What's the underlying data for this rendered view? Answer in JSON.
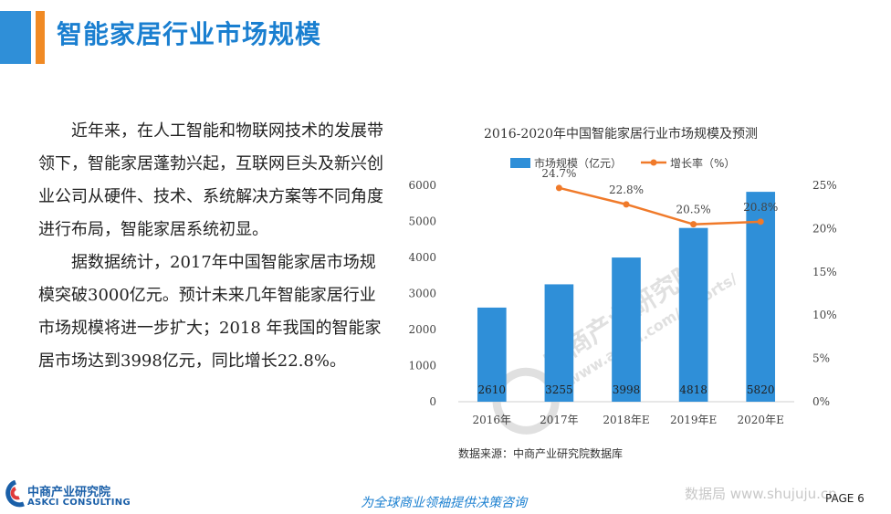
{
  "header": {
    "title": "智能家居行业市场规模"
  },
  "body": {
    "paragraphs": [
      "近年来，在人工智能和物联网技术的发展带领下，智能家居蓬勃兴起，互联网巨头及新兴创业公司从硬件、技术、系统解决方案等不同角度进行布局，智能家居系统初显。",
      "据数据统计，2017年中国智能家居市场规模突破3000亿元。预计未来几年智能家居行业市场规模将进一步扩大；2018 年我国的智能家居市场达到3998亿元，同比增长22.8%。"
    ]
  },
  "chart_data": {
    "type": "bar",
    "title": "2016-2020年中国智能家居行业市场规模及预测",
    "categories": [
      "2016年",
      "2017年",
      "2018年E",
      "2019年E",
      "2020年E"
    ],
    "series": [
      {
        "name": "市场规模（亿元）",
        "type": "bar",
        "axis": "left",
        "values": [
          2610,
          3255,
          3998,
          4818,
          5820
        ],
        "labels": [
          "2610",
          "3255",
          "3998",
          "4818",
          "5820"
        ],
        "color": "#2f8fd8"
      },
      {
        "name": "增长率（%）",
        "type": "line",
        "axis": "right",
        "values": [
          null,
          24.7,
          22.8,
          20.5,
          20.8
        ],
        "labels": [
          "",
          "24.7%",
          "22.8%",
          "20.5%",
          "20.8%"
        ],
        "color": "#f07a2a"
      }
    ],
    "y_left": {
      "range": [
        0,
        6000
      ],
      "ticks": [
        "0",
        "1000",
        "2000",
        "3000",
        "4000",
        "5000",
        "6000"
      ]
    },
    "y_right": {
      "range": [
        0,
        25
      ],
      "ticks": [
        "0%",
        "5%",
        "10%",
        "15%",
        "20%",
        "25%"
      ]
    },
    "legend_position": "top",
    "grid": false,
    "source": "数据来源：中商产业研究院数据库"
  },
  "watermark": {
    "name": "中商产业研究院",
    "url": "www.askci.com/reports/"
  },
  "footer": {
    "logo_cn": "中商产业研究院",
    "logo_en": "ASKCI CONSULTING",
    "slogan": "为全球商业领袖提供决策咨询",
    "site": "数据局 www.shujuju.cn",
    "page": "PAGE 6"
  },
  "colors": {
    "brand_blue": "#2f8fd8",
    "accent_orange": "#f08a24",
    "title_blue": "#1a7fd0"
  },
  "icons": {
    "logo": "askci-logo-icon"
  }
}
